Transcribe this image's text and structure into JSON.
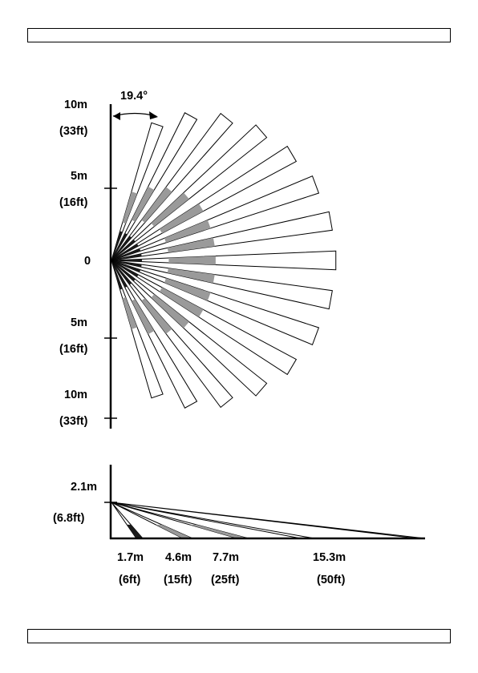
{
  "top_view": {
    "angle_label": "19.4°",
    "y_labels": [
      {
        "value": "10m",
        "sub": "(33ft)"
      },
      {
        "value": "5m",
        "sub": "(16ft)"
      },
      {
        "value": "0",
        "sub": ""
      },
      {
        "value": "5m",
        "sub": "(16ft)"
      },
      {
        "value": "10m",
        "sub": "(33ft)"
      }
    ]
  },
  "side_view": {
    "height_label": "2.1m",
    "height_sub": "(6.8ft)",
    "distance_labels": [
      {
        "value": "1.7m",
        "sub": "(6ft)"
      },
      {
        "value": "4.6m",
        "sub": "(15ft)"
      },
      {
        "value": "7.7m",
        "sub": "(25ft)"
      },
      {
        "value": "15.3m",
        "sub": "(50ft)"
      }
    ]
  },
  "colors": {
    "beam_fill": "#ffffff",
    "zone_fill": "#9a9a9a",
    "line": "#000000"
  }
}
